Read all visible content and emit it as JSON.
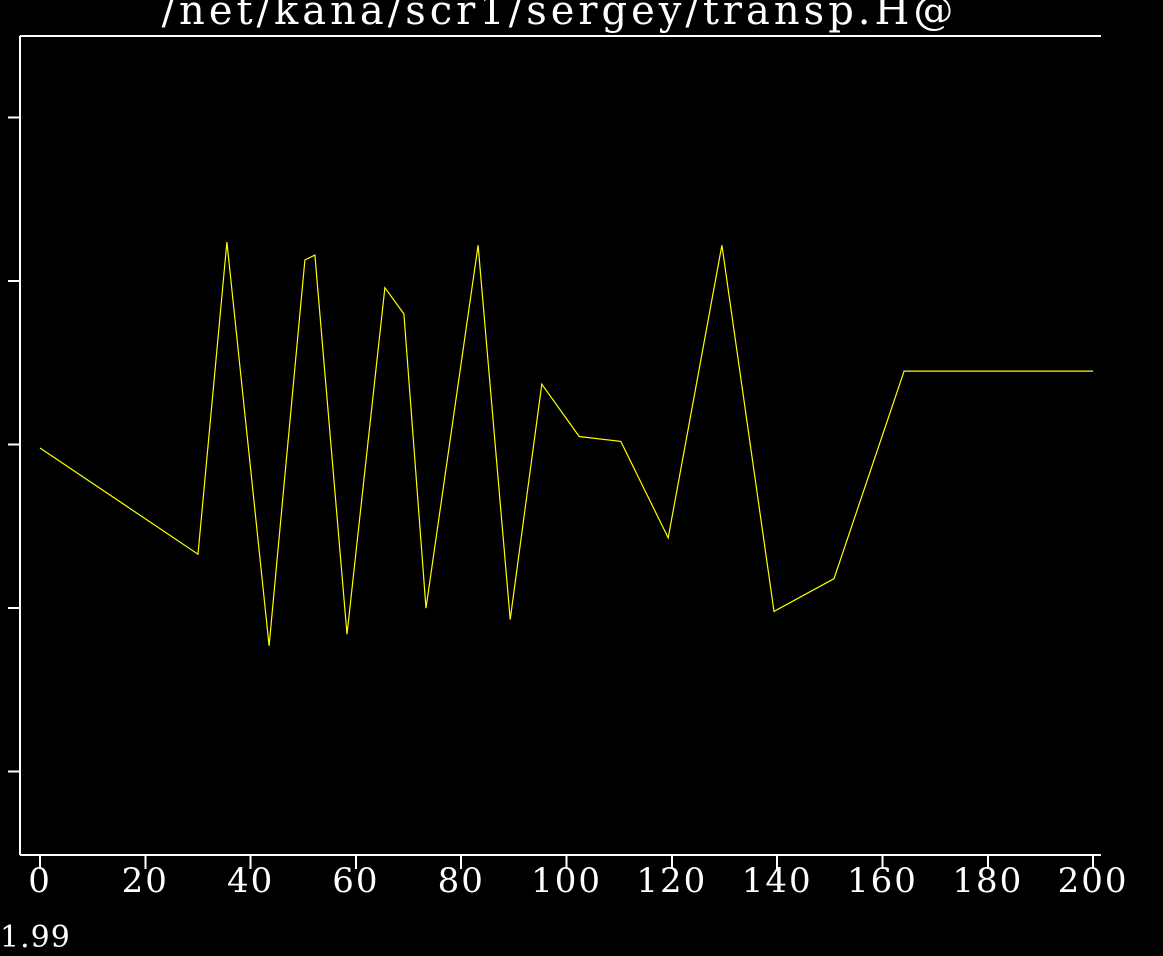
{
  "window": {
    "title": "/net/kana/scr1/sergey/transp.H@"
  },
  "corner_label": {
    "text": "1.99"
  },
  "colors": {
    "background": "#000000",
    "axis": "#ffffff",
    "text": "#ffffff",
    "trace": "#ffff00"
  },
  "chart_data": {
    "type": "line",
    "title": "/net/kana/scr1/sergey/transp.H@",
    "xlabel": "",
    "ylabel": "",
    "grid": false,
    "legend": false,
    "xlim": [
      -3.8,
      201.5
    ],
    "ylim": [
      -2.51,
      2.5
    ],
    "xticks": {
      "values": [
        0,
        20,
        40,
        60,
        80,
        100,
        120,
        140,
        160,
        180,
        200
      ],
      "labels": [
        "0",
        "20",
        "40",
        "60",
        "80",
        "100",
        "120",
        "140",
        "160",
        "180",
        "200"
      ]
    },
    "yticks": {
      "values": [
        2,
        1,
        0,
        -1,
        -2
      ],
      "labels": [
        "",
        "",
        "",
        "",
        ""
      ],
      "note_labels_visible": false
    },
    "series": [
      {
        "name": "trace",
        "color": "#ffff00",
        "x": [
          0,
          30.0,
          35.5,
          43.5,
          50.3,
          52.2,
          58.3,
          65.5,
          69.1,
          73.3,
          83.2,
          89.3,
          95.3,
          102.4,
          110.3,
          119.3,
          129.5,
          139.4,
          150.8,
          164.1,
          200.0
        ],
        "y": [
          -0.02,
          -0.67,
          1.24,
          -1.23,
          1.13,
          1.16,
          -1.16,
          0.96,
          0.8,
          -1.0,
          1.22,
          -1.07,
          0.37,
          0.05,
          0.02,
          -0.57,
          1.22,
          -1.02,
          -0.82,
          0.45,
          0.45
        ]
      }
    ]
  }
}
